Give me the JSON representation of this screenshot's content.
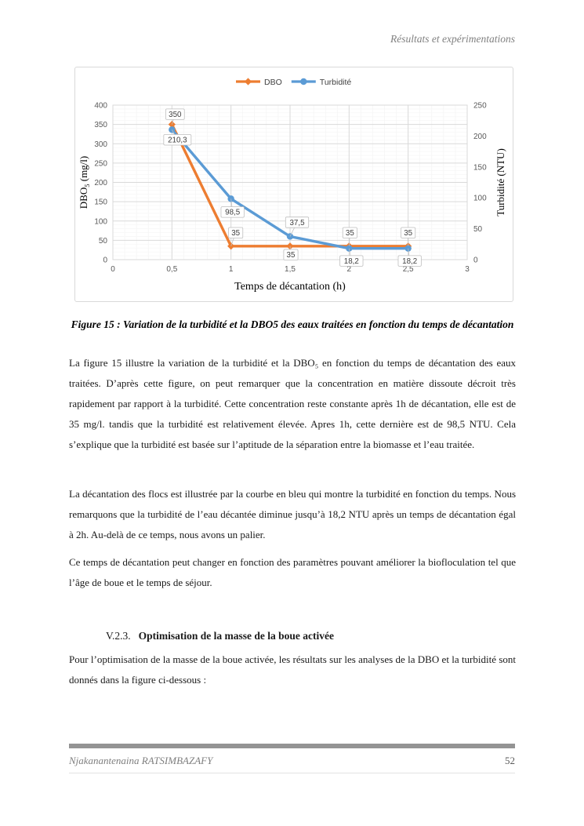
{
  "header": {
    "running_title": "Résultats et expérimentations"
  },
  "chart_data": {
    "type": "line",
    "x": [
      0.5,
      1,
      1.5,
      2,
      2.5
    ],
    "xlim": [
      0,
      3
    ],
    "ylim_left": [
      0,
      400
    ],
    "ylim_right": [
      0,
      250
    ],
    "xlabel": "Temps de décantation (h)",
    "ylabel_left": {
      "main": "DBO",
      "sub": "5",
      "unit": " (mg/l)"
    },
    "ylabel_right": "Turbidité (NTU)",
    "xticks": [
      "0",
      "0,5",
      "1",
      "1,5",
      "2",
      "2,5",
      "3"
    ],
    "yticks_left": [
      "0",
      "50",
      "100",
      "150",
      "200",
      "250",
      "300",
      "350",
      "400"
    ],
    "yticks_right": [
      "0",
      "50",
      "100",
      "150",
      "200",
      "250"
    ],
    "grid": {
      "major": "#d9d9d9",
      "minor": "#f2f2f2",
      "on": true
    },
    "legend_position": "top-center",
    "legend": [
      {
        "name": "DBO",
        "color": "#ED7D31",
        "marker": "diamond"
      },
      {
        "name": "Turbidité",
        "color": "#5B9BD5",
        "marker": "circle"
      }
    ],
    "series": [
      {
        "name": "DBO",
        "axis": "left",
        "color": "#ED7D31",
        "marker": "diamond",
        "values": [
          350,
          35,
          35,
          35,
          35
        ],
        "labels": [
          {
            "text": "350",
            "dx": 4,
            "dy": -13
          },
          {
            "text": "35",
            "dx": 6,
            "dy": -17
          },
          {
            "text": "35",
            "dx": 1,
            "dy": 11
          },
          {
            "text": "35",
            "dx": 1,
            "dy": -17
          },
          {
            "text": "35",
            "dx": 0,
            "dy": -17
          }
        ]
      },
      {
        "name": "Turbidité",
        "axis": "right",
        "color": "#5B9BD5",
        "marker": "circle",
        "values": [
          210.3,
          98.5,
          37.5,
          18.2,
          18.2
        ],
        "labels": [
          {
            "text": "210,3",
            "dx": 7,
            "dy": 13
          },
          {
            "text": "98,5",
            "dx": 2,
            "dy": 17
          },
          {
            "text": "37,5",
            "dx": 9,
            "dy": -18
          },
          {
            "text": "18,2",
            "dx": 3,
            "dy": 16
          },
          {
            "text": "18,2",
            "dx": 2,
            "dy": 16
          }
        ]
      }
    ]
  },
  "caption": "Figure 15 : Variation de la turbidité et la DBO5 des eaux traitées en fonction du temps de décantation",
  "body": {
    "paragraphs": [
      "La figure 15 illustre la variation de la turbidité et la DBO₅ en fonction du temps de décantation des eaux traitées. D’après cette figure, on peut remarquer que la concentration en matière dissoute décroit très rapidement par rapport à la turbidité. Cette concentration reste constante après 1h de décantation, elle est de 35 mg/l. tandis que la turbidité est relativement élevée. Apres 1h, cette dernière est de 98,5 NTU. Cela s’explique que la turbidité est basée sur l’aptitude de la séparation entre la biomasse et l’eau traitée.",
      "La décantation des flocs est illustrée par la courbe en bleu qui montre la turbidité en fonction du temps. Nous remarquons que la turbidité de l’eau décantée diminue jusqu’à 18,2 NTU après un temps de décantation égal à 2h. Au-delà de ce temps, nous avons un palier.",
      "Ce temps de décantation peut changer en fonction des paramètres pouvant améliorer la biofloculation tel que l’âge de boue et le temps de séjour.",
      "Pour l’optimisation de la masse de la boue activée, les résultats sur les analyses de la DBO et la turbidité sont donnés dans la figure ci-dessous :"
    ]
  },
  "section": {
    "number": "V.2.3.",
    "title": "Optimisation de la masse de la boue activée"
  },
  "footer": {
    "author": "Njakanantenaina RATSIMBAZAFY",
    "page_number": "52"
  }
}
